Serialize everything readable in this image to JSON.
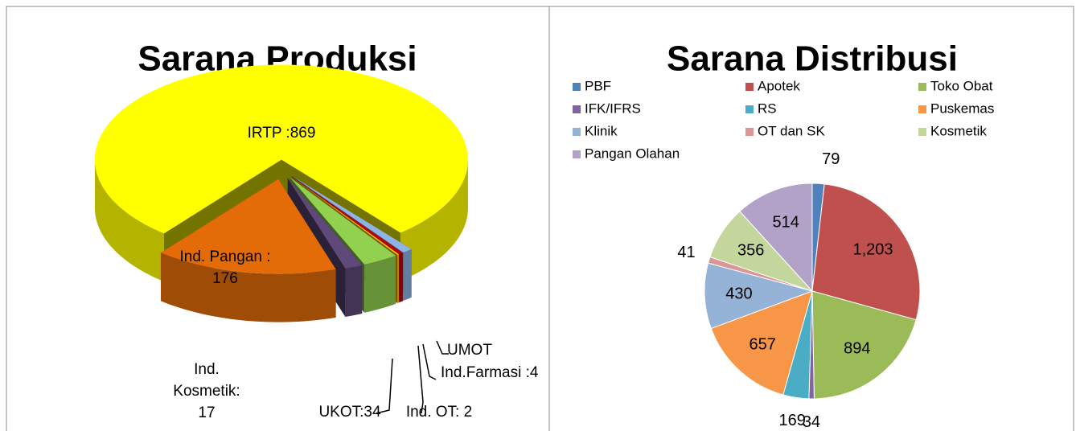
{
  "chart_data": [
    {
      "type": "pie3d",
      "title": "Sarana Produksi",
      "value_labels": [
        "IRTP :869",
        "UMOT",
        "Ind.Farmasi :4",
        "Ind. OT:  2",
        "UKOT:34",
        "Ind. Kosmetik: 17",
        "Ind. Pangan : 176"
      ],
      "values": [
        869,
        10,
        4,
        2,
        34,
        17,
        176
      ],
      "colors": [
        "#ffff00",
        "#8eb4e3",
        "#c00000",
        "#ffc000",
        "#92d050",
        "#5f497a",
        "#e36c09"
      ]
    },
    {
      "type": "pie",
      "title": "Sarana Distribusi",
      "categories": [
        "PBF",
        "Apotek",
        "Toko Obat",
        "IFK/IFRS",
        "RS",
        "Puskemas",
        "Klinik",
        "OT dan SK",
        "Kosmetik",
        "Pangan Olahan"
      ],
      "values": [
        79,
        1203,
        894,
        34,
        169,
        657,
        430,
        41,
        356,
        514
      ],
      "value_labels": [
        "79",
        "1,203",
        "894",
        "34",
        "169",
        "657",
        "430",
        "41",
        "356",
        "514"
      ],
      "colors": [
        "#4f81bd",
        "#c0504d",
        "#9bbb59",
        "#8064a2",
        "#4bacc6",
        "#f79646",
        "#95b3d7",
        "#d99694",
        "#c3d69b",
        "#b2a2c7"
      ],
      "legend": "top"
    }
  ]
}
